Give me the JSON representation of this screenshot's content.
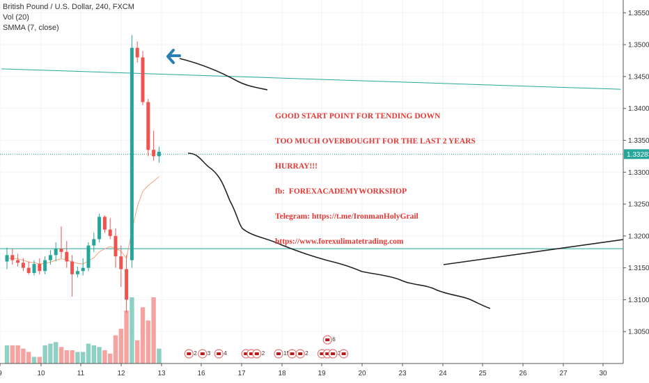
{
  "legend": {
    "symbol": "British Pound / U.S. Dollar, 240, FXCM",
    "volume": "Vol (20)",
    "smma": "SMMA (7, close)"
  },
  "annotation": {
    "lines": [
      "GOOD START POINT FOR TENDING DOWN",
      "TOO MUCH OVERBOUGHT FOR THE LAST 2 YEARS",
      "HURRAY!!!",
      "fb:  FOREXACADEMYWORKSHOP",
      "Telegram: https://t.me/IronmanHolyGrail",
      "https://www.forexulimatetrading.com"
    ]
  },
  "colors": {
    "up": "#26a69a",
    "down": "#ef5350",
    "vol_up": "#8fd0c5",
    "vol_down": "#f5a3a1",
    "trendline": "#26a69a",
    "smma": "#f4a07a",
    "drawing": "#222222",
    "arrow": "#2a7fb5",
    "price_tag": "#26a69a"
  },
  "chart_data": {
    "type": "candlestick",
    "title": "British Pound / U.S. Dollar, 240, FXCM",
    "ylim": [
      1.3,
      1.357
    ],
    "y_ticks": [
      "1.35500",
      "1.35000",
      "1.34500",
      "1.34000",
      "1.33500",
      "1.33000",
      "1.32500",
      "1.32000",
      "1.31500",
      "1.31000",
      "1.30500"
    ],
    "x_ticks": [
      "9",
      "10",
      "11",
      "12",
      "13",
      "16",
      "17",
      "18",
      "19",
      "20",
      "23",
      "24",
      "25",
      "26",
      "27",
      "30"
    ],
    "last_price": "1.33283",
    "candles": [
      {
        "o": 1.316,
        "h": 1.3182,
        "l": 1.3148,
        "c": 1.317,
        "v": 0.55
      },
      {
        "o": 1.317,
        "h": 1.318,
        "l": 1.3155,
        "c": 1.3162,
        "v": 0.55
      },
      {
        "o": 1.3162,
        "h": 1.3172,
        "l": 1.3152,
        "c": 1.3158,
        "v": 0.55
      },
      {
        "o": 1.3158,
        "h": 1.3165,
        "l": 1.3145,
        "c": 1.315,
        "v": 0.45
      },
      {
        "o": 1.315,
        "h": 1.316,
        "l": 1.314,
        "c": 1.3142,
        "v": 0.35
      },
      {
        "o": 1.3142,
        "h": 1.3162,
        "l": 1.3138,
        "c": 1.3156,
        "v": 0.2
      },
      {
        "o": 1.3156,
        "h": 1.3165,
        "l": 1.314,
        "c": 1.3145,
        "v": 0.2
      },
      {
        "o": 1.3145,
        "h": 1.3168,
        "l": 1.314,
        "c": 1.3162,
        "v": 0.55
      },
      {
        "o": 1.3162,
        "h": 1.3178,
        "l": 1.3155,
        "c": 1.317,
        "v": 0.6
      },
      {
        "o": 1.317,
        "h": 1.319,
        "l": 1.316,
        "c": 1.318,
        "v": 0.65
      },
      {
        "o": 1.318,
        "h": 1.3215,
        "l": 1.3165,
        "c": 1.3175,
        "v": 0.5
      },
      {
        "o": 1.3175,
        "h": 1.3192,
        "l": 1.315,
        "c": 1.316,
        "v": 0.4
      },
      {
        "o": 1.316,
        "h": 1.317,
        "l": 1.3105,
        "c": 1.314,
        "v": 0.4
      },
      {
        "o": 1.314,
        "h": 1.3152,
        "l": 1.3135,
        "c": 1.3145,
        "v": 0.35
      },
      {
        "o": 1.3145,
        "h": 1.3165,
        "l": 1.3138,
        "c": 1.315,
        "v": 0.35
      },
      {
        "o": 1.315,
        "h": 1.319,
        "l": 1.3145,
        "c": 1.3185,
        "v": 0.6
      },
      {
        "o": 1.3185,
        "h": 1.3205,
        "l": 1.3175,
        "c": 1.3195,
        "v": 0.55
      },
      {
        "o": 1.3195,
        "h": 1.3235,
        "l": 1.319,
        "c": 1.323,
        "v": 0.5
      },
      {
        "o": 1.323,
        "h": 1.3232,
        "l": 1.3205,
        "c": 1.321,
        "v": 0.4
      },
      {
        "o": 1.321,
        "h": 1.3228,
        "l": 1.3195,
        "c": 1.32,
        "v": 0.3
      },
      {
        "o": 1.32,
        "h": 1.3212,
        "l": 1.315,
        "c": 1.3168,
        "v": 0.85
      },
      {
        "o": 1.3168,
        "h": 1.3185,
        "l": 1.312,
        "c": 1.3148,
        "v": 1.05
      },
      {
        "o": 1.3148,
        "h": 1.317,
        "l": 1.308,
        "c": 1.31,
        "v": 1.6
      },
      {
        "o": 1.3162,
        "h": 1.3515,
        "l": 1.315,
        "c": 1.3495,
        "v": 2.0
      },
      {
        "o": 1.3495,
        "h": 1.3505,
        "l": 1.3472,
        "c": 1.348,
        "v": 0.7
      },
      {
        "o": 1.348,
        "h": 1.349,
        "l": 1.3405,
        "c": 1.341,
        "v": 1.7
      },
      {
        "o": 1.341,
        "h": 1.3415,
        "l": 1.3325,
        "c": 1.3335,
        "v": 1.3
      },
      {
        "o": 1.3335,
        "h": 1.3365,
        "l": 1.3318,
        "c": 1.3325,
        "v": 2.0
      },
      {
        "o": 1.3325,
        "h": 1.334,
        "l": 1.3315,
        "c": 1.3332,
        "v": 0.45
      }
    ],
    "smma": [
      1.3165,
      1.3165,
      1.3164,
      1.3162,
      1.3159,
      1.3158,
      1.3156,
      1.3157,
      1.3159,
      1.3162,
      1.3164,
      1.3163,
      1.3159,
      1.3157,
      1.3156,
      1.3161,
      1.3166,
      1.3175,
      1.318,
      1.3183,
      1.3181,
      1.3176,
      1.3165,
      1.3208,
      1.3246,
      1.327,
      1.3279,
      1.3286,
      1.3293
    ],
    "horizontal_line": 1.318,
    "trendline": {
      "from": {
        "bar": -1,
        "price": 1.3462
      },
      "to": {
        "bar": 113,
        "price": 1.343
      }
    },
    "events": [
      {
        "bar": 33.5,
        "text": "2"
      },
      {
        "bar": 36,
        "text": "3"
      },
      {
        "bar": 39,
        "text": "4"
      },
      {
        "bar": 44,
        "text": "7"
      },
      {
        "bar": 45,
        "text": "4"
      },
      {
        "bar": 46,
        "text": "2"
      },
      {
        "bar": 50,
        "text": "15"
      },
      {
        "bar": 52.5,
        "text": "2"
      },
      {
        "bar": 54,
        "text": "2"
      },
      {
        "bar": 58,
        "text": "2"
      },
      {
        "bar": 59,
        "text": "6"
      },
      {
        "bar": 60,
        "text": "3"
      },
      {
        "bar": 59,
        "text": "6",
        "row": 2
      },
      {
        "bar": 62,
        "text": ""
      }
    ]
  }
}
